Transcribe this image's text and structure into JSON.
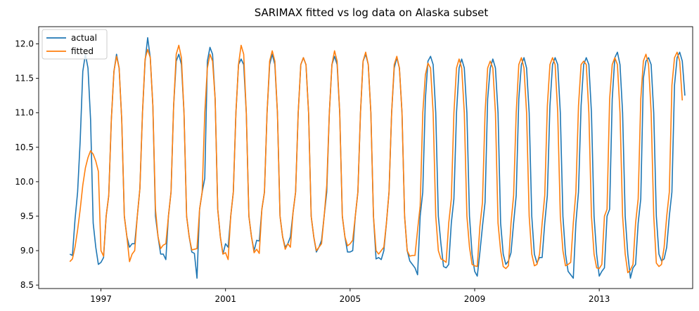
{
  "chart_data": {
    "type": "line",
    "title": "SARIMAX fitted vs log data on Alaska subset",
    "xlabel": "",
    "ylabel": "",
    "xlim": [
      1995.0,
      2016.0
    ],
    "ylim": [
      8.45,
      12.25
    ],
    "x_ticks": [
      {
        "value": 1997,
        "label": "1997"
      },
      {
        "value": 2001,
        "label": "2001"
      },
      {
        "value": 2005,
        "label": "2005"
      },
      {
        "value": 2009,
        "label": "2009"
      },
      {
        "value": 2013,
        "label": "2013"
      }
    ],
    "y_ticks": [
      {
        "value": 8.5,
        "label": "8.5"
      },
      {
        "value": 9.0,
        "label": "9.0"
      },
      {
        "value": 9.5,
        "label": "9.5"
      },
      {
        "value": 10.0,
        "label": "10.0"
      },
      {
        "value": 10.5,
        "label": "10.5"
      },
      {
        "value": 11.0,
        "label": "11.0"
      },
      {
        "value": 11.5,
        "label": "11.5"
      },
      {
        "value": 12.0,
        "label": "12.0"
      }
    ],
    "grid": false,
    "legend": "top-left",
    "x_start": 1996.0,
    "x_step_months": 1,
    "series": [
      {
        "name": "actual",
        "color": "#1f77b4",
        "values": [
          8.95,
          8.93,
          9.45,
          9.85,
          10.6,
          11.6,
          11.85,
          11.65,
          10.9,
          9.4,
          9.05,
          8.8,
          8.83,
          8.9,
          9.5,
          9.8,
          10.9,
          11.6,
          11.85,
          11.65,
          10.9,
          9.5,
          9.2,
          9.05,
          9.1,
          9.1,
          9.5,
          9.9,
          11.0,
          11.75,
          12.09,
          11.8,
          11.1,
          9.5,
          9.2,
          8.95,
          8.95,
          8.87,
          9.5,
          9.85,
          11.1,
          11.75,
          11.85,
          11.7,
          11.0,
          9.5,
          9.2,
          8.98,
          8.96,
          8.6,
          9.6,
          9.85,
          10.05,
          11.75,
          11.95,
          11.85,
          11.2,
          9.6,
          9.2,
          8.95,
          9.1,
          9.05,
          9.5,
          9.85,
          11.0,
          11.7,
          11.78,
          11.7,
          11.0,
          9.5,
          9.2,
          9.0,
          9.15,
          9.14,
          9.6,
          9.85,
          11.0,
          11.7,
          11.85,
          11.7,
          11.0,
          9.5,
          9.2,
          9.05,
          9.1,
          9.2,
          9.55,
          9.85,
          11.0,
          11.7,
          11.8,
          11.7,
          11.0,
          9.5,
          9.2,
          8.98,
          9.05,
          9.15,
          9.5,
          9.85,
          11.0,
          11.7,
          11.82,
          11.7,
          11.0,
          9.5,
          9.2,
          8.98,
          8.98,
          9.0,
          9.5,
          9.85,
          11.0,
          11.75,
          11.85,
          11.7,
          11.0,
          9.5,
          8.88,
          8.9,
          8.87,
          9.0,
          9.4,
          9.85,
          11.0,
          11.65,
          11.8,
          11.65,
          11.0,
          9.5,
          9.0,
          8.85,
          8.8,
          8.75,
          8.65,
          9.5,
          9.85,
          11.2,
          11.75,
          11.82,
          11.7,
          11.0,
          9.5,
          9.1,
          8.77,
          8.75,
          8.8,
          9.4,
          9.75,
          11.0,
          11.65,
          11.78,
          11.65,
          11.0,
          9.5,
          8.95,
          8.7,
          8.63,
          8.97,
          9.35,
          9.7,
          11.2,
          11.65,
          11.78,
          11.65,
          11.0,
          9.4,
          8.95,
          8.8,
          8.85,
          8.97,
          9.4,
          9.8,
          11.2,
          11.7,
          11.8,
          11.65,
          11.0,
          9.5,
          8.95,
          8.82,
          8.9,
          8.9,
          9.4,
          9.8,
          11.1,
          11.7,
          11.8,
          11.7,
          11.0,
          9.5,
          8.95,
          8.7,
          8.65,
          8.6,
          9.4,
          9.85,
          11.1,
          11.7,
          11.8,
          11.7,
          11.0,
          9.5,
          8.95,
          8.63,
          8.7,
          8.75,
          9.5,
          9.6,
          11.2,
          11.8,
          11.88,
          11.7,
          11.0,
          9.5,
          8.95,
          8.6,
          8.75,
          8.8,
          9.4,
          9.75,
          11.5,
          11.75,
          11.8,
          11.7,
          11.0,
          9.5,
          8.95,
          8.85,
          8.88,
          9.05,
          9.5,
          9.85,
          11.4,
          11.8,
          11.88,
          11.75,
          11.25
        ]
      },
      {
        "name": "fitted",
        "color": "#ff7f0e",
        "values": [
          8.84,
          8.88,
          9.05,
          9.3,
          9.6,
          9.95,
          10.2,
          10.35,
          10.45,
          10.4,
          10.3,
          10.15,
          9.0,
          8.92,
          9.5,
          9.8,
          10.9,
          11.6,
          11.82,
          11.65,
          10.9,
          9.5,
          9.2,
          8.84,
          8.95,
          9.0,
          9.5,
          9.9,
          11.0,
          11.78,
          11.92,
          11.8,
          11.1,
          9.6,
          9.2,
          9.03,
          9.08,
          9.1,
          9.5,
          9.85,
          11.1,
          11.85,
          11.98,
          11.8,
          11.0,
          9.5,
          9.2,
          9.01,
          9.02,
          9.03,
          9.6,
          9.85,
          11.0,
          11.65,
          11.85,
          11.75,
          11.2,
          9.6,
          9.2,
          8.95,
          8.97,
          8.87,
          9.5,
          9.85,
          11.0,
          11.7,
          11.98,
          11.85,
          11.0,
          9.5,
          9.2,
          8.97,
          9.02,
          8.96,
          9.6,
          9.85,
          11.0,
          11.75,
          11.9,
          11.75,
          11.0,
          9.5,
          9.2,
          9.02,
          9.1,
          9.05,
          9.55,
          9.85,
          11.0,
          11.7,
          11.8,
          11.7,
          11.0,
          9.5,
          9.2,
          9.0,
          9.05,
          9.1,
          9.5,
          9.95,
          11.0,
          11.7,
          11.9,
          11.75,
          11.0,
          9.5,
          9.2,
          9.07,
          9.1,
          9.15,
          9.5,
          9.85,
          11.0,
          11.75,
          11.88,
          11.7,
          11.0,
          9.5,
          9.0,
          8.95,
          9.0,
          9.05,
          9.4,
          9.85,
          11.0,
          11.7,
          11.82,
          11.65,
          11.0,
          9.5,
          9.0,
          8.92,
          8.93,
          8.93,
          9.3,
          9.65,
          11.0,
          11.55,
          11.72,
          11.65,
          11.0,
          9.5,
          9.0,
          8.88,
          8.86,
          8.83,
          9.4,
          9.75,
          11.0,
          11.65,
          11.78,
          11.65,
          11.0,
          9.5,
          9.05,
          8.8,
          8.78,
          8.77,
          9.35,
          9.7,
          11.0,
          11.65,
          11.75,
          11.65,
          11.0,
          9.4,
          9.0,
          8.77,
          8.74,
          8.78,
          9.4,
          9.8,
          11.0,
          11.7,
          11.8,
          11.65,
          11.0,
          9.5,
          8.95,
          8.78,
          8.8,
          8.95,
          9.4,
          9.8,
          11.1,
          11.7,
          11.8,
          11.7,
          11.0,
          9.5,
          9.0,
          8.78,
          8.8,
          8.83,
          9.4,
          9.85,
          11.1,
          11.7,
          11.75,
          11.7,
          11.0,
          9.5,
          8.95,
          8.75,
          8.74,
          8.8,
          9.5,
          9.6,
          11.2,
          11.7,
          11.8,
          11.7,
          11.0,
          9.5,
          8.95,
          8.68,
          8.72,
          8.8,
          9.4,
          9.75,
          11.2,
          11.75,
          11.85,
          11.7,
          11.0,
          9.5,
          8.82,
          8.77,
          8.8,
          9.05,
          9.5,
          9.85,
          11.4,
          11.8,
          11.88,
          11.75,
          11.18
        ]
      }
    ]
  }
}
